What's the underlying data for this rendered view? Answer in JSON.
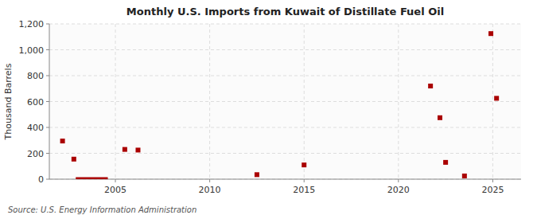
{
  "chart_data": {
    "type": "scatter",
    "title": "Monthly U.S. Imports from Kuwait of Distillate Fuel Oil",
    "y_label": "Thousand Barrels",
    "source": "Source: U.S. Energy Information Administration",
    "series": [
      {
        "type": "scatter",
        "marker": "square",
        "color": "#aa0000",
        "x": [
          2002.2,
          2002.8,
          2005.5,
          2006.2,
          2012.5,
          2015.0,
          2021.7,
          2022.2,
          2022.5,
          2023.5,
          2024.9,
          2025.2
        ],
        "values": [
          295,
          155,
          230,
          225,
          35,
          110,
          720,
          475,
          130,
          25,
          1125,
          625
        ]
      },
      {
        "type": "line",
        "color": "#aa0000",
        "x": [
          2002.9,
          2004.6
        ],
        "values": [
          0,
          0
        ]
      }
    ],
    "xlim": [
      2001.5,
      2026.5
    ],
    "ylim": [
      0,
      1200
    ],
    "xticks": [
      2005,
      2010,
      2015,
      2020,
      2025
    ],
    "yticks": [
      0,
      200,
      400,
      600,
      800,
      {
        "value": 1000,
        "label": "1,000"
      },
      {
        "value": 1200,
        "label": "1,200"
      }
    ],
    "grid": true
  }
}
